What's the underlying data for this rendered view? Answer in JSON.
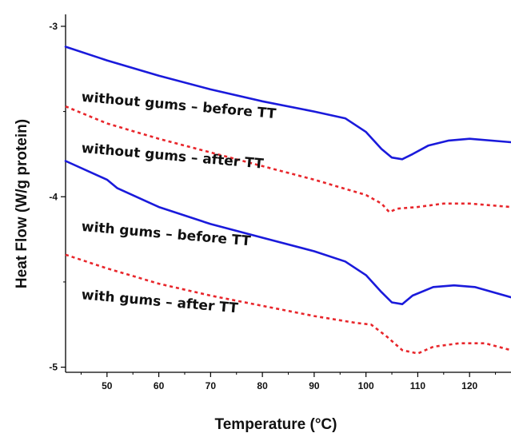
{
  "chart_data": {
    "type": "line",
    "title": "",
    "xlabel": "Temperature  (°C)",
    "ylabel": "Heat Flow  (W/g protein)",
    "xlim": [
      42,
      128
    ],
    "ylim": [
      -5.03,
      -2.93
    ],
    "x_ticks": [
      50,
      60,
      70,
      80,
      90,
      100,
      110,
      120
    ],
    "y_ticks": [
      -3,
      -4,
      -5
    ],
    "grid": false,
    "legend": "none",
    "series": [
      {
        "name": "without gums – before TT",
        "color": "#1a1adb",
        "style": "solid",
        "label_pos": [
          45,
          -3.44
        ],
        "label_rotate": 5,
        "points": [
          [
            42,
            -3.12
          ],
          [
            50,
            -3.2
          ],
          [
            60,
            -3.29
          ],
          [
            70,
            -3.37
          ],
          [
            80,
            -3.44
          ],
          [
            90,
            -3.5
          ],
          [
            96,
            -3.54
          ],
          [
            100,
            -3.62
          ],
          [
            103,
            -3.72
          ],
          [
            105,
            -3.77
          ],
          [
            107,
            -3.78
          ],
          [
            109,
            -3.75
          ],
          [
            112,
            -3.7
          ],
          [
            116,
            -3.67
          ],
          [
            120,
            -3.66
          ],
          [
            128,
            -3.68
          ]
        ]
      },
      {
        "name": "without gums – after TT",
        "color": "#e8262b",
        "style": "dotted",
        "label_pos": [
          45,
          -3.74
        ],
        "label_rotate": 5,
        "points": [
          [
            42,
            -3.47
          ],
          [
            50,
            -3.57
          ],
          [
            60,
            -3.66
          ],
          [
            70,
            -3.74
          ],
          [
            80,
            -3.82
          ],
          [
            90,
            -3.9
          ],
          [
            100,
            -3.99
          ],
          [
            103,
            -4.04
          ],
          [
            104.5,
            -4.09
          ],
          [
            106,
            -4.07
          ],
          [
            110,
            -4.06
          ],
          [
            115,
            -4.04
          ],
          [
            120,
            -4.04
          ],
          [
            128,
            -4.06
          ]
        ]
      },
      {
        "name": "with gums – before TT",
        "color": "#1a1adb",
        "style": "solid",
        "label_pos": [
          45,
          -4.2
        ],
        "label_rotate": 5,
        "points": [
          [
            42,
            -3.79
          ],
          [
            50,
            -3.9
          ],
          [
            52,
            -3.95
          ],
          [
            60,
            -4.06
          ],
          [
            70,
            -4.16
          ],
          [
            80,
            -4.24
          ],
          [
            90,
            -4.32
          ],
          [
            96,
            -4.38
          ],
          [
            100,
            -4.46
          ],
          [
            103,
            -4.56
          ],
          [
            105,
            -4.62
          ],
          [
            107,
            -4.63
          ],
          [
            109,
            -4.58
          ],
          [
            113,
            -4.53
          ],
          [
            117,
            -4.52
          ],
          [
            121,
            -4.53
          ],
          [
            128,
            -4.59
          ]
        ]
      },
      {
        "name": "with gums – after TT",
        "color": "#e8262b",
        "style": "dotted",
        "label_pos": [
          45,
          -4.6
        ],
        "label_rotate": 5,
        "points": [
          [
            42,
            -4.34
          ],
          [
            50,
            -4.42
          ],
          [
            60,
            -4.51
          ],
          [
            70,
            -4.58
          ],
          [
            80,
            -4.64
          ],
          [
            90,
            -4.7
          ],
          [
            98,
            -4.74
          ],
          [
            101,
            -4.75
          ],
          [
            104,
            -4.82
          ],
          [
            107,
            -4.9
          ],
          [
            110,
            -4.92
          ],
          [
            113,
            -4.88
          ],
          [
            118,
            -4.86
          ],
          [
            123,
            -4.86
          ],
          [
            128,
            -4.9
          ]
        ]
      }
    ]
  }
}
